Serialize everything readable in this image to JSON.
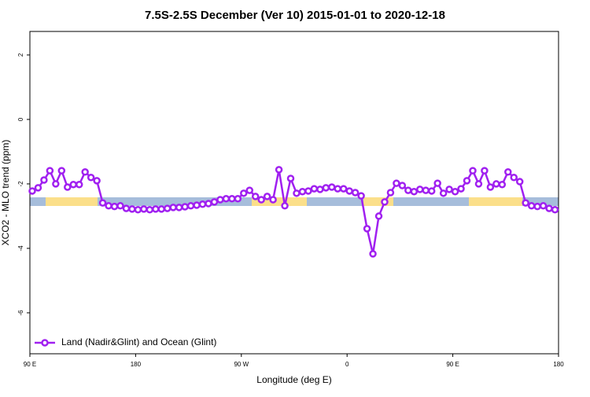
{
  "chart_data": {
    "type": "line",
    "title": "7.5S-2.5S December (Ver 10)   2015-01-01 to 2020-12-18",
    "xlabel": "Longitude (deg E)",
    "ylabel": "XCO2 - MLO trend (ppm)",
    "xlim": [
      90,
      540
    ],
    "ylim": [
      -7.27,
      2.73
    ],
    "xticks": [
      {
        "value": 90,
        "label": "90 E"
      },
      {
        "value": 180,
        "label": "180"
      },
      {
        "value": 270,
        "label": "90 W"
      },
      {
        "value": 360,
        "label": "0"
      },
      {
        "value": 450,
        "label": "90 E"
      },
      {
        "value": 540,
        "label": "180"
      }
    ],
    "yticks": [
      2,
      0,
      -2,
      -4,
      -6
    ],
    "grid": false,
    "legend": "bottomleft",
    "x": [
      92,
      97,
      102,
      107,
      112,
      117,
      122,
      127,
      132,
      137,
      142,
      147,
      152,
      157,
      162,
      167,
      172,
      177,
      182,
      187,
      192,
      197,
      202,
      207,
      212,
      217,
      222,
      227,
      232,
      237,
      242,
      247,
      252,
      257,
      262,
      267,
      272,
      277,
      282,
      287,
      292,
      297,
      302,
      307,
      312,
      317,
      322,
      327,
      332,
      337,
      342,
      347,
      352,
      357,
      362,
      367,
      372,
      377,
      382,
      387,
      392,
      397,
      402,
      407,
      412,
      417,
      422,
      427,
      432,
      437,
      442,
      447,
      452,
      457,
      462,
      467,
      472,
      477,
      482,
      487,
      492,
      497,
      502,
      507,
      512,
      517,
      522,
      527,
      532,
      537
    ],
    "series": [
      {
        "name": "Land (Nadir&Glint) and Ocean (Glint)",
        "color": "#a020f0",
        "values": [
          -2.22,
          -2.12,
          -1.88,
          -1.59,
          -2.0,
          -1.59,
          -2.1,
          -2.02,
          -2.02,
          -1.63,
          -1.8,
          -1.9,
          -2.59,
          -2.68,
          -2.7,
          -2.68,
          -2.76,
          -2.78,
          -2.8,
          -2.78,
          -2.8,
          -2.78,
          -2.78,
          -2.76,
          -2.73,
          -2.73,
          -2.71,
          -2.68,
          -2.66,
          -2.63,
          -2.61,
          -2.56,
          -2.49,
          -2.46,
          -2.46,
          -2.46,
          -2.29,
          -2.2,
          -2.39,
          -2.49,
          -2.39,
          -2.49,
          -1.56,
          -2.68,
          -1.83,
          -2.29,
          -2.24,
          -2.22,
          -2.15,
          -2.17,
          -2.12,
          -2.1,
          -2.15,
          -2.15,
          -2.22,
          -2.27,
          -2.37,
          -3.39,
          -4.17,
          -3.0,
          -2.56,
          -2.27,
          -1.98,
          -2.05,
          -2.2,
          -2.24,
          -2.17,
          -2.2,
          -2.22,
          -1.98,
          -2.29,
          -2.17,
          -2.24,
          -2.15,
          -1.9,
          -1.59,
          -2.0,
          -1.59,
          -2.1,
          -2.0,
          -2.02,
          -1.63,
          -1.8,
          -1.93,
          -2.59,
          -2.68,
          -2.7,
          -2.68,
          -2.76,
          -2.8
        ]
      }
    ]
  }
}
